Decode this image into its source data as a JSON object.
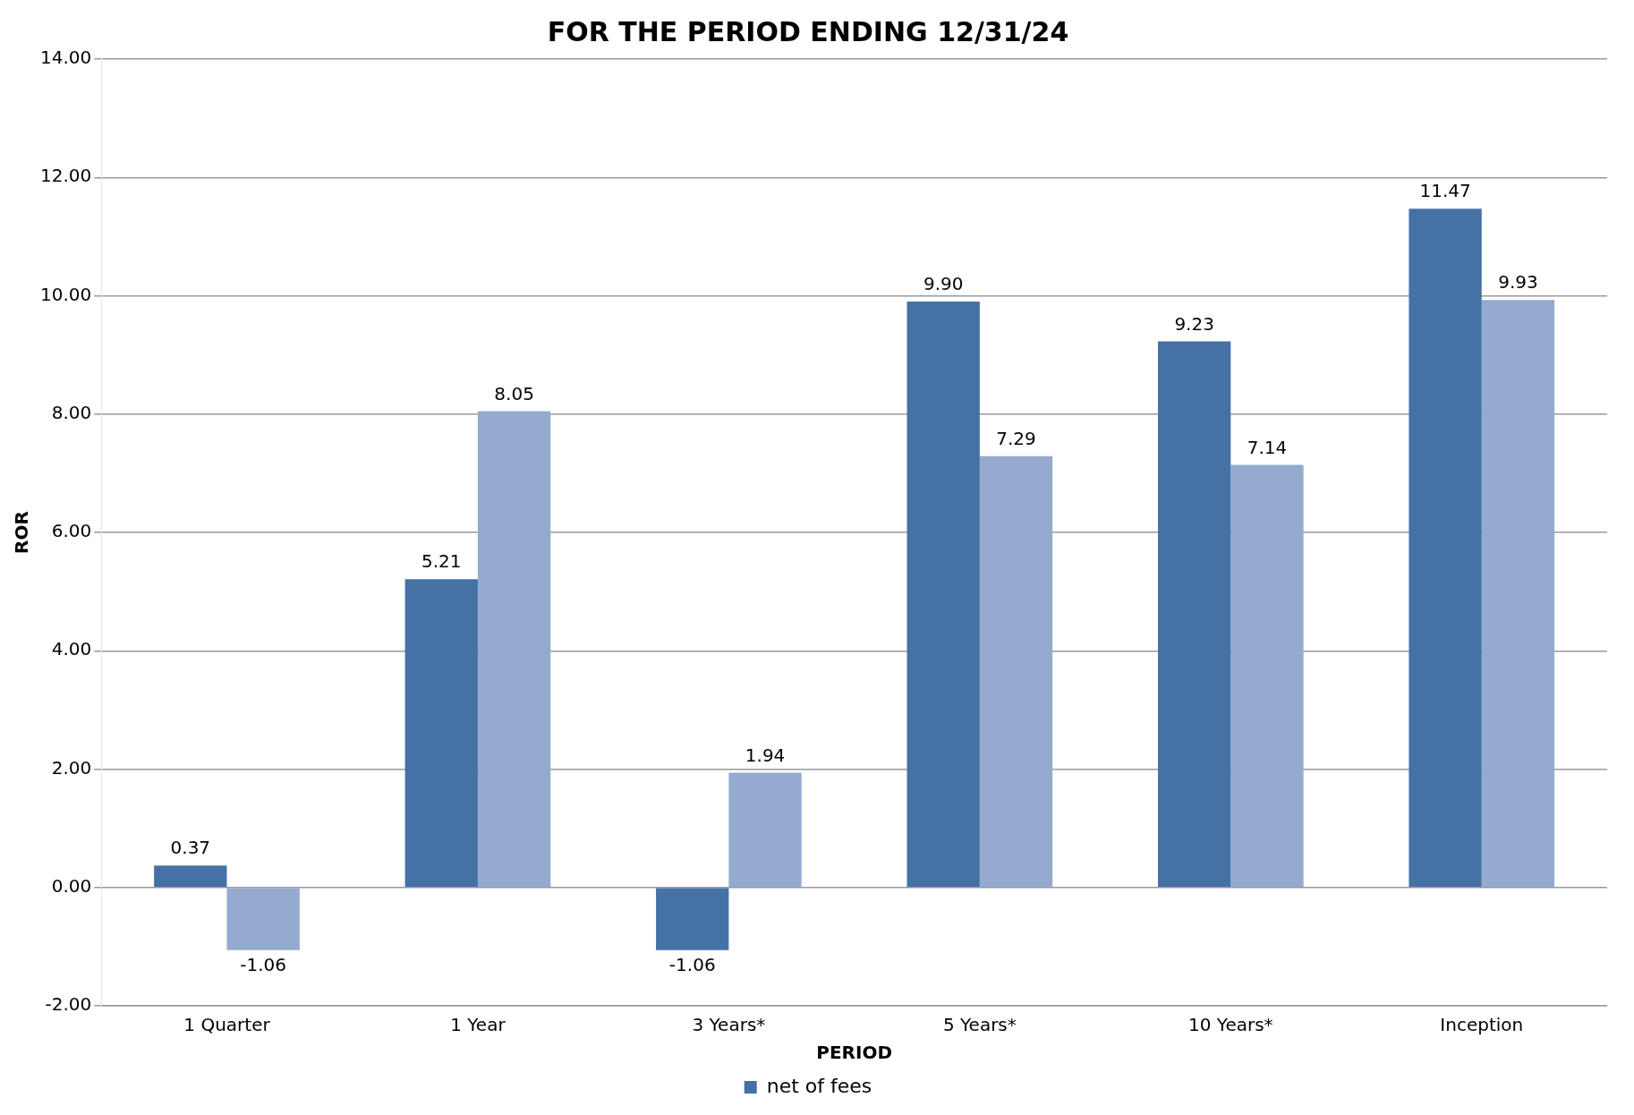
{
  "chart_data": {
    "type": "bar",
    "title": "FOR THE PERIOD ENDING 12/31/24",
    "xlabel": "PERIOD",
    "ylabel": "ROR",
    "categories": [
      "1 Quarter",
      "1 Year",
      "3 Years*",
      "5 Years*",
      "10 Years*",
      "Inception"
    ],
    "series": [
      {
        "name": "net of fees",
        "color": "#4571a5",
        "values": [
          0.37,
          5.21,
          -1.06,
          9.9,
          9.23,
          11.47
        ],
        "value_labels": [
          "0.37",
          "5.21",
          "-1.06",
          "9.90",
          "9.23",
          "11.47"
        ]
      },
      {
        "color": "#94aacf",
        "values": [
          -1.06,
          8.05,
          1.94,
          7.29,
          7.14,
          9.93
        ],
        "value_labels": [
          "-1.06",
          "8.05",
          "1.94",
          "7.29",
          "7.14",
          "9.93"
        ]
      }
    ],
    "ylim": [
      -2,
      14
    ],
    "yticks": [
      {
        "value": -2,
        "label": "-2.00"
      },
      {
        "value": 0,
        "label": "0.00"
      },
      {
        "value": 2,
        "label": "2.00"
      },
      {
        "value": 4,
        "label": "4.00"
      },
      {
        "value": 6,
        "label": "6.00"
      },
      {
        "value": 8,
        "label": "8.00"
      },
      {
        "value": 10,
        "label": "10.00"
      },
      {
        "value": 12,
        "label": "12.00"
      },
      {
        "value": 14,
        "label": "14.00"
      }
    ],
    "grid": "y",
    "legend": "bottom"
  }
}
